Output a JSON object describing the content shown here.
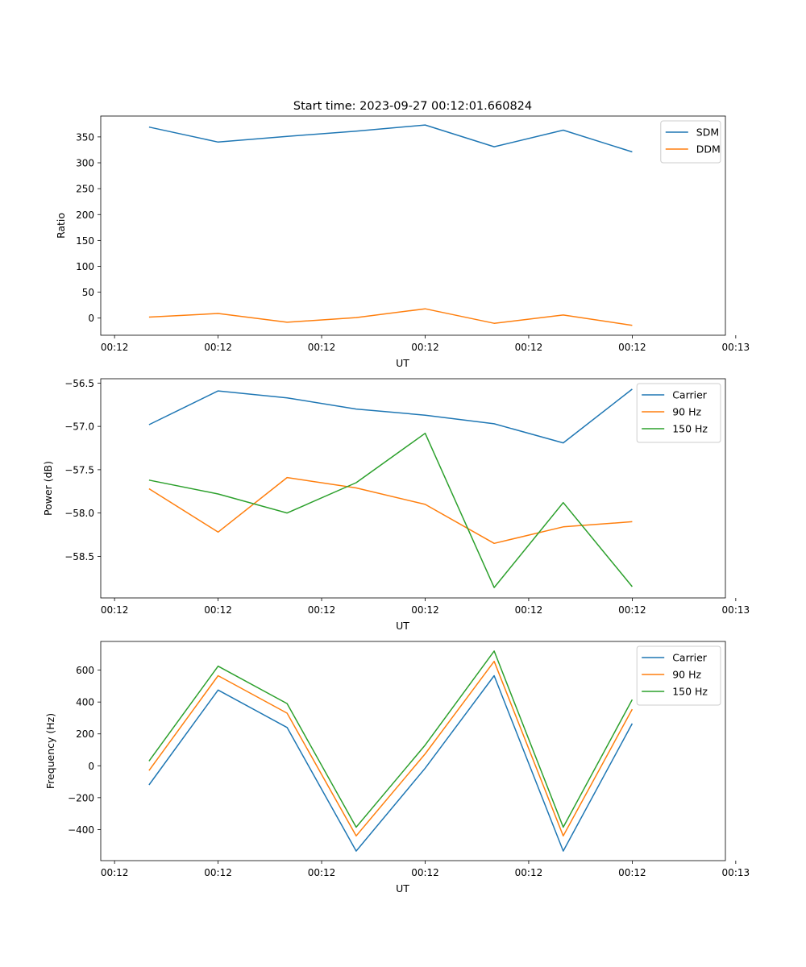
{
  "figure_title": "Start time: 2023-09-27 00:12:01.660824",
  "colors": {
    "blue": "#1f77b4",
    "orange": "#ff7f0e",
    "green": "#2ca02c"
  },
  "chart_data": [
    {
      "type": "line",
      "title": "Start time: 2023-09-27 00:12:01.660824",
      "xlabel": "UT",
      "ylabel": "Ratio",
      "x": [
        1,
        2,
        3,
        4,
        5,
        6,
        7,
        8
      ],
      "xlim": [
        0.3,
        9.35
      ],
      "xticks": [
        0.5,
        2,
        3.5,
        5,
        6.5,
        8,
        9.5
      ],
      "xtick_labels": [
        "00:12",
        "00:12",
        "00:12",
        "00:12",
        "00:12",
        "00:12",
        "00:13"
      ],
      "ylim": [
        -33.1,
        390.3
      ],
      "yticks": [
        0,
        50,
        100,
        150,
        200,
        250,
        300,
        350
      ],
      "ytick_labels": [
        "0",
        "50",
        "100",
        "150",
        "200",
        "250",
        "300",
        "350"
      ],
      "legend": "top-right",
      "series": [
        {
          "name": "SDM",
          "color": "#1f77b4",
          "values": [
            369,
            340,
            351,
            361,
            373,
            331,
            363,
            321
          ]
        },
        {
          "name": "DDM",
          "color": "#ff7f0e",
          "values": [
            2,
            9,
            -8,
            1,
            18,
            -10,
            6,
            -14
          ]
        }
      ]
    },
    {
      "type": "line",
      "title": "",
      "xlabel": "UT",
      "ylabel": "Power (dB)",
      "x": [
        1,
        2,
        3,
        4,
        5,
        6,
        7,
        8
      ],
      "xlim": [
        0.3,
        9.35
      ],
      "xticks": [
        0.5,
        2,
        3.5,
        5,
        6.5,
        8,
        9.5
      ],
      "xtick_labels": [
        "00:12",
        "00:12",
        "00:12",
        "00:12",
        "00:12",
        "00:12",
        "00:13"
      ],
      "ylim": [
        -58.98,
        -56.45
      ],
      "yticks": [
        -58.5,
        -58.0,
        -57.5,
        -57.0,
        -56.5
      ],
      "ytick_labels": [
        "−58.5",
        "−58.0",
        "−57.5",
        "−57.0",
        "−56.5"
      ],
      "legend": "top-right",
      "series": [
        {
          "name": "Carrier",
          "color": "#1f77b4",
          "values": [
            -56.98,
            -56.59,
            -56.67,
            -56.8,
            -56.87,
            -56.97,
            -57.19,
            -56.57
          ]
        },
        {
          "name": "90 Hz",
          "color": "#ff7f0e",
          "values": [
            -57.72,
            -58.22,
            -57.59,
            -57.71,
            -57.9,
            -58.35,
            -58.16,
            -58.1
          ]
        },
        {
          "name": "150 Hz",
          "color": "#2ca02c",
          "values": [
            -57.62,
            -57.78,
            -58.0,
            -57.65,
            -57.08,
            -58.86,
            -57.88,
            -58.85
          ]
        }
      ]
    },
    {
      "type": "line",
      "title": "",
      "xlabel": "UT",
      "ylabel": "Frequency (Hz)",
      "x": [
        1,
        2,
        3,
        4,
        5,
        6,
        7,
        8
      ],
      "xlim": [
        0.3,
        9.35
      ],
      "xticks": [
        0.5,
        2,
        3.5,
        5,
        6.5,
        8,
        9.5
      ],
      "xtick_labels": [
        "00:12",
        "00:12",
        "00:12",
        "00:12",
        "00:12",
        "00:12",
        "00:13"
      ],
      "ylim": [
        -595,
        780
      ],
      "yticks": [
        -400,
        -200,
        0,
        200,
        400,
        600
      ],
      "ytick_labels": [
        "−400",
        "−200",
        "0",
        "200",
        "400",
        "600"
      ],
      "legend": "top-right",
      "series": [
        {
          "name": "Carrier",
          "color": "#1f77b4",
          "values": [
            -120,
            475,
            240,
            -535,
            -15,
            565,
            -535,
            265
          ]
        },
        {
          "name": "90 Hz",
          "color": "#ff7f0e",
          "values": [
            -30,
            565,
            330,
            -440,
            75,
            655,
            -440,
            355
          ]
        },
        {
          "name": "150 Hz",
          "color": "#2ca02c",
          "values": [
            30,
            625,
            390,
            -385,
            130,
            720,
            -385,
            415
          ]
        }
      ]
    }
  ]
}
